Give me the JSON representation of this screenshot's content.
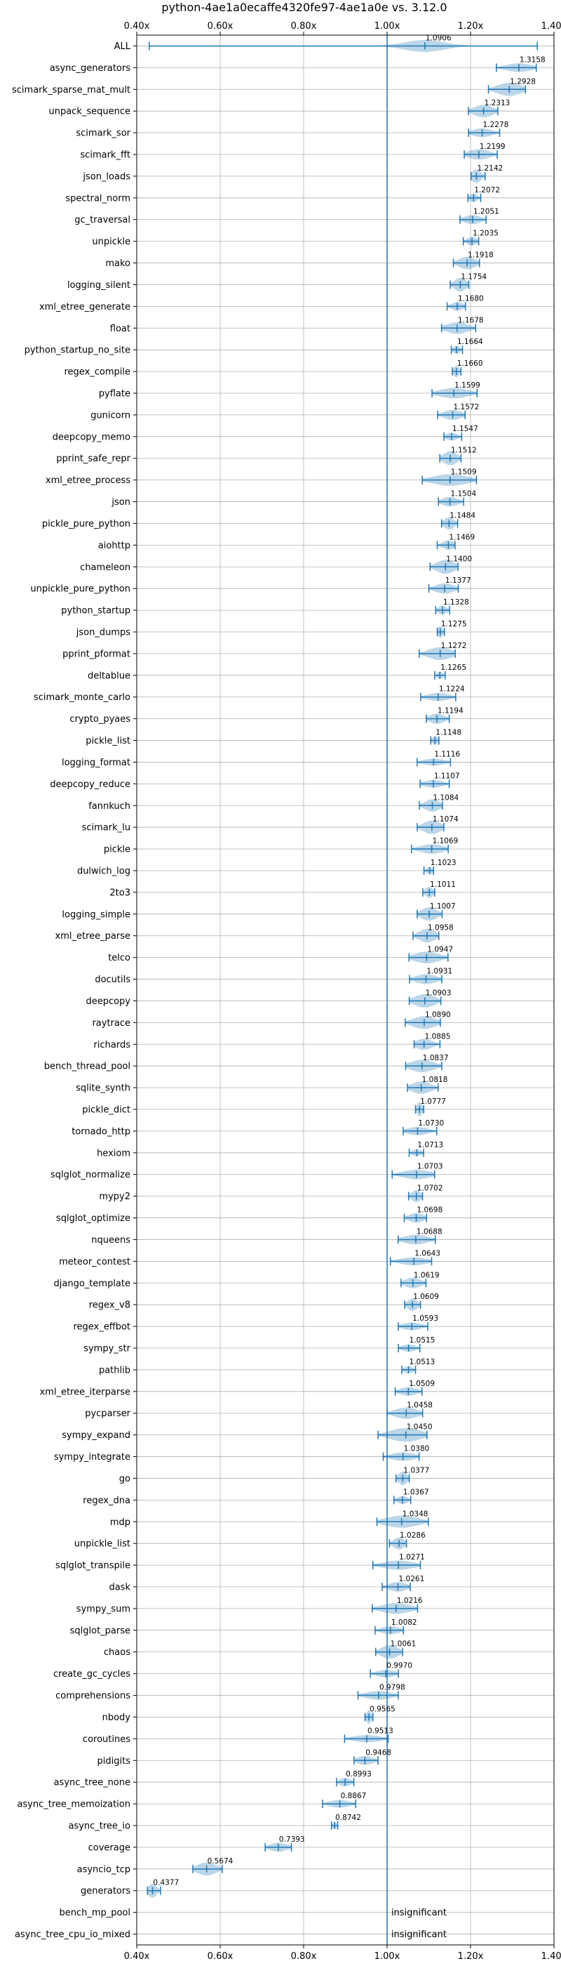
{
  "chart_data": {
    "type": "violin",
    "title": "python-4ae1a0ecaffe4320fe97-4ae1a0e vs. 3.12.0",
    "xlabel": "",
    "ylabel": "",
    "xlim": [
      0.4,
      1.4
    ],
    "xticks": [
      0.4,
      0.6,
      0.8,
      1.0,
      1.2,
      1.4
    ],
    "xtick_labels": [
      "0.40x",
      "0.60x",
      "0.80x",
      "1.00x",
      "1.20x",
      "1.40x"
    ],
    "reference_line": 1.0,
    "grid": true,
    "benchmarks": [
      {
        "name": "ALL",
        "value": 1.0906,
        "label": "1.0906",
        "min": 0.43,
        "max": 1.36
      },
      {
        "name": "async_generators",
        "value": 1.3158,
        "label": "1.3158"
      },
      {
        "name": "scimark_sparse_mat_mult",
        "value": 1.2928,
        "label": "1.2928"
      },
      {
        "name": "unpack_sequence",
        "value": 1.2313,
        "label": "1.2313"
      },
      {
        "name": "scimark_sor",
        "value": 1.2278,
        "label": "1.2278"
      },
      {
        "name": "scimark_fft",
        "value": 1.2199,
        "label": "1.2199"
      },
      {
        "name": "json_loads",
        "value": 1.2142,
        "label": "1.2142"
      },
      {
        "name": "spectral_norm",
        "value": 1.2072,
        "label": "1.2072"
      },
      {
        "name": "gc_traversal",
        "value": 1.2051,
        "label": "1.2051"
      },
      {
        "name": "unpickle",
        "value": 1.2035,
        "label": "1.2035"
      },
      {
        "name": "mako",
        "value": 1.1918,
        "label": "1.1918"
      },
      {
        "name": "logging_silent",
        "value": 1.1754,
        "label": "1.1754"
      },
      {
        "name": "xml_etree_generate",
        "value": 1.168,
        "label": "1.1680"
      },
      {
        "name": "float",
        "value": 1.1678,
        "label": "1.1678"
      },
      {
        "name": "python_startup_no_site",
        "value": 1.1664,
        "label": "1.1664"
      },
      {
        "name": "regex_compile",
        "value": 1.166,
        "label": "1.1660"
      },
      {
        "name": "pyflate",
        "value": 1.1599,
        "label": "1.1599"
      },
      {
        "name": "gunicorn",
        "value": 1.1572,
        "label": "1.1572"
      },
      {
        "name": "deepcopy_memo",
        "value": 1.1547,
        "label": "1.1547"
      },
      {
        "name": "pprint_safe_repr",
        "value": 1.1512,
        "label": "1.1512"
      },
      {
        "name": "xml_etree_process",
        "value": 1.1509,
        "label": "1.1509"
      },
      {
        "name": "json",
        "value": 1.1504,
        "label": "1.1504"
      },
      {
        "name": "pickle_pure_python",
        "value": 1.1484,
        "label": "1.1484"
      },
      {
        "name": "aiohttp",
        "value": 1.1469,
        "label": "1.1469"
      },
      {
        "name": "chameleon",
        "value": 1.14,
        "label": "1.1400"
      },
      {
        "name": "unpickle_pure_python",
        "value": 1.1377,
        "label": "1.1377"
      },
      {
        "name": "python_startup",
        "value": 1.1328,
        "label": "1.1328"
      },
      {
        "name": "json_dumps",
        "value": 1.1275,
        "label": "1.1275"
      },
      {
        "name": "pprint_pformat",
        "value": 1.1272,
        "label": "1.1272"
      },
      {
        "name": "deltablue",
        "value": 1.1265,
        "label": "1.1265"
      },
      {
        "name": "scimark_monte_carlo",
        "value": 1.1224,
        "label": "1.1224"
      },
      {
        "name": "crypto_pyaes",
        "value": 1.1194,
        "label": "1.1194"
      },
      {
        "name": "pickle_list",
        "value": 1.1148,
        "label": "1.1148"
      },
      {
        "name": "logging_format",
        "value": 1.1116,
        "label": "1.1116"
      },
      {
        "name": "deepcopy_reduce",
        "value": 1.1107,
        "label": "1.1107"
      },
      {
        "name": "fannkuch",
        "value": 1.1084,
        "label": "1.1084"
      },
      {
        "name": "scimark_lu",
        "value": 1.1074,
        "label": "1.1074"
      },
      {
        "name": "pickle",
        "value": 1.1069,
        "label": "1.1069"
      },
      {
        "name": "dulwich_log",
        "value": 1.1023,
        "label": "1.1023"
      },
      {
        "name": "2to3",
        "value": 1.1011,
        "label": "1.1011"
      },
      {
        "name": "logging_simple",
        "value": 1.1007,
        "label": "1.1007"
      },
      {
        "name": "xml_etree_parse",
        "value": 1.0958,
        "label": "1.0958"
      },
      {
        "name": "telco",
        "value": 1.0947,
        "label": "1.0947"
      },
      {
        "name": "docutils",
        "value": 1.0931,
        "label": "1.0931"
      },
      {
        "name": "deepcopy",
        "value": 1.0903,
        "label": "1.0903"
      },
      {
        "name": "raytrace",
        "value": 1.089,
        "label": "1.0890"
      },
      {
        "name": "richards",
        "value": 1.0885,
        "label": "1.0885"
      },
      {
        "name": "bench_thread_pool",
        "value": 1.0837,
        "label": "1.0837"
      },
      {
        "name": "sqlite_synth",
        "value": 1.0818,
        "label": "1.0818"
      },
      {
        "name": "pickle_dict",
        "value": 1.0777,
        "label": "1.0777"
      },
      {
        "name": "tornado_http",
        "value": 1.073,
        "label": "1.0730"
      },
      {
        "name": "hexiom",
        "value": 1.0713,
        "label": "1.0713"
      },
      {
        "name": "sqlglot_normalize",
        "value": 1.0703,
        "label": "1.0703"
      },
      {
        "name": "mypy2",
        "value": 1.0702,
        "label": "1.0702"
      },
      {
        "name": "sqlglot_optimize",
        "value": 1.0698,
        "label": "1.0698"
      },
      {
        "name": "nqueens",
        "value": 1.0688,
        "label": "1.0688"
      },
      {
        "name": "meteor_contest",
        "value": 1.0643,
        "label": "1.0643"
      },
      {
        "name": "django_template",
        "value": 1.0619,
        "label": "1.0619"
      },
      {
        "name": "regex_v8",
        "value": 1.0609,
        "label": "1.0609"
      },
      {
        "name": "regex_effbot",
        "value": 1.0593,
        "label": "1.0593"
      },
      {
        "name": "sympy_str",
        "value": 1.0515,
        "label": "1.0515"
      },
      {
        "name": "pathlib",
        "value": 1.0513,
        "label": "1.0513"
      },
      {
        "name": "xml_etree_iterparse",
        "value": 1.0509,
        "label": "1.0509"
      },
      {
        "name": "pycparser",
        "value": 1.0458,
        "label": "1.0458"
      },
      {
        "name": "sympy_expand",
        "value": 1.045,
        "label": "1.0450"
      },
      {
        "name": "sympy_integrate",
        "value": 1.038,
        "label": "1.0380"
      },
      {
        "name": "go",
        "value": 1.0377,
        "label": "1.0377"
      },
      {
        "name": "regex_dna",
        "value": 1.0367,
        "label": "1.0367"
      },
      {
        "name": "mdp",
        "value": 1.0348,
        "label": "1.0348"
      },
      {
        "name": "unpickle_list",
        "value": 1.0286,
        "label": "1.0286"
      },
      {
        "name": "sqlglot_transpile",
        "value": 1.0271,
        "label": "1.0271"
      },
      {
        "name": "dask",
        "value": 1.0261,
        "label": "1.0261"
      },
      {
        "name": "sympy_sum",
        "value": 1.0216,
        "label": "1.0216"
      },
      {
        "name": "sqlglot_parse",
        "value": 1.0082,
        "label": "1.0082"
      },
      {
        "name": "chaos",
        "value": 1.0061,
        "label": "1.0061"
      },
      {
        "name": "create_gc_cycles",
        "value": 0.997,
        "label": "0.9970"
      },
      {
        "name": "comprehensions",
        "value": 0.9798,
        "label": "0.9798"
      },
      {
        "name": "nbody",
        "value": 0.9565,
        "label": "0.9565"
      },
      {
        "name": "coroutines",
        "value": 0.9513,
        "label": "0.9513"
      },
      {
        "name": "pidigits",
        "value": 0.9468,
        "label": "0.9468"
      },
      {
        "name": "async_tree_none",
        "value": 0.8993,
        "label": "0.8993"
      },
      {
        "name": "async_tree_memoization",
        "value": 0.8867,
        "label": "0.8867"
      },
      {
        "name": "async_tree_io",
        "value": 0.8742,
        "label": "0.8742"
      },
      {
        "name": "coverage",
        "value": 0.7393,
        "label": "0.7393"
      },
      {
        "name": "asyncio_tcp",
        "value": 0.5674,
        "label": "0.5674"
      },
      {
        "name": "generators",
        "value": 0.4377,
        "label": "0.4377"
      },
      {
        "name": "bench_mp_pool",
        "value": null,
        "label": "insignificant"
      },
      {
        "name": "async_tree_cpu_io_mixed",
        "value": null,
        "label": "insignificant"
      }
    ]
  }
}
